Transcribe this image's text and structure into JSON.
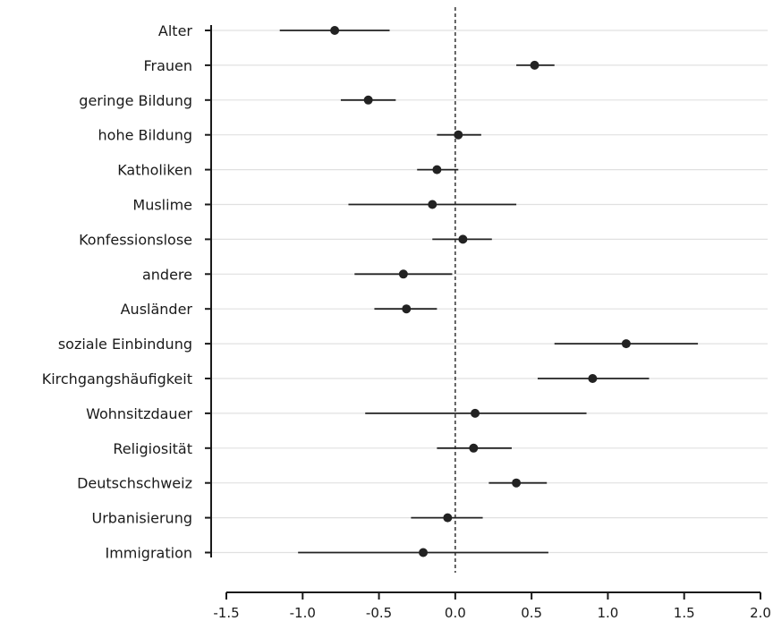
{
  "chart_data": {
    "type": "scatter",
    "subtype": "coefficient-plot",
    "title": "",
    "xlabel": "",
    "ylabel": "",
    "xlim": [
      -1.5,
      2.0
    ],
    "xticks": [
      -1.5,
      -1.0,
      -0.5,
      0.0,
      0.5,
      1.0,
      1.5,
      2.0
    ],
    "xtick_labels": [
      "-1.5",
      "-1.0",
      "-0.5",
      "0.0",
      "0.5",
      "1.0",
      "1.5",
      "2.0"
    ],
    "reference_line": 0,
    "reference_line_style": "dashed",
    "grid": "horizontal",
    "categories": [
      "Alter",
      "Frauen",
      "geringe Bildung",
      "hohe Bildung",
      "Katholiken",
      "Muslime",
      "Konfessionslose",
      "andere",
      "Ausländer",
      "soziale Einbindung",
      "Kirchgangshäufigkeit",
      "Wohnsitzdauer",
      "Religiosität",
      "Deutschschweiz",
      "Urbanisierung",
      "Immigration"
    ],
    "estimates": [
      -0.79,
      0.52,
      -0.57,
      0.02,
      -0.12,
      -0.15,
      0.05,
      -0.34,
      -0.32,
      1.12,
      0.9,
      0.13,
      0.12,
      0.4,
      -0.05,
      -0.21
    ],
    "ci_lower": [
      -1.15,
      0.4,
      -0.75,
      -0.12,
      -0.25,
      -0.7,
      -0.15,
      -0.66,
      -0.53,
      0.65,
      0.54,
      -0.59,
      -0.12,
      0.22,
      -0.29,
      -1.03
    ],
    "ci_upper": [
      -0.43,
      0.65,
      -0.39,
      0.17,
      0.02,
      0.4,
      0.24,
      -0.02,
      -0.12,
      1.59,
      1.27,
      0.86,
      0.37,
      0.6,
      0.18,
      0.61
    ]
  },
  "colors": {
    "point": "#222222",
    "errorbar": "#222222",
    "axis": "#1a1a1a",
    "grid": "#e0e0e0",
    "reference": "#333333",
    "background": "#ffffff"
  }
}
